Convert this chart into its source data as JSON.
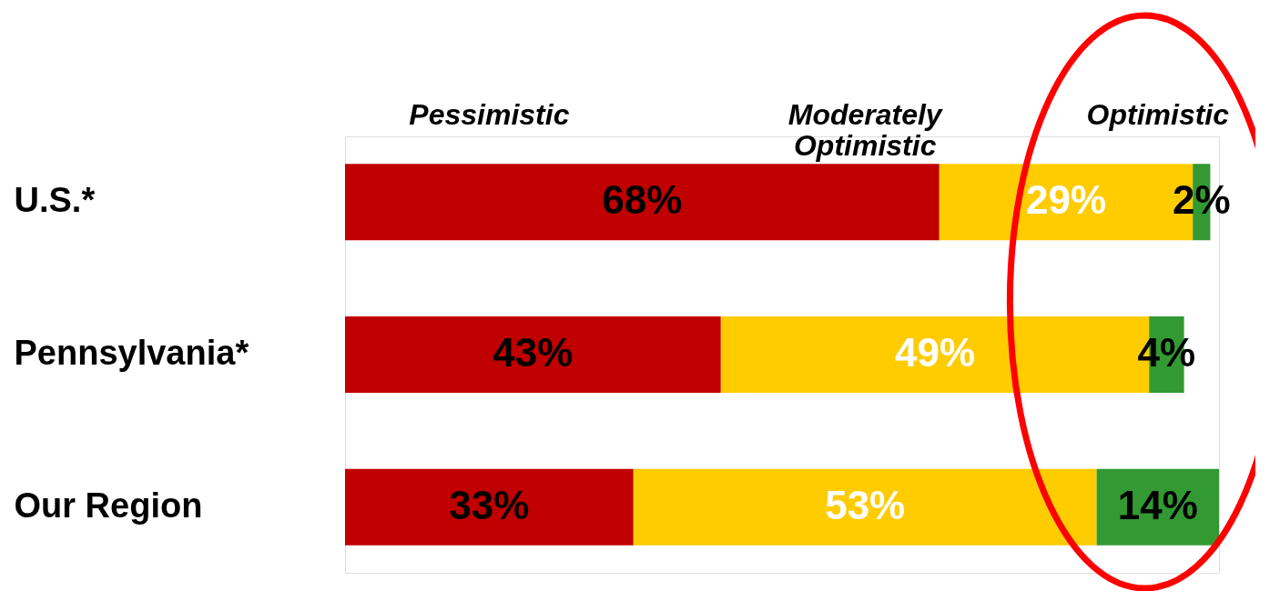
{
  "chart_data": {
    "type": "bar",
    "orientation": "horizontal",
    "stacked": true,
    "legend": false,
    "grid": false,
    "tick_labels": "y",
    "categories": [
      "U.S.*",
      "Pennsylvania*",
      "Our Region"
    ],
    "series": [
      {
        "name": "Pessimistic",
        "color": "#c00000",
        "values": [
          68,
          43,
          33
        ],
        "value_labels": [
          "68%",
          "43%",
          "33%"
        ]
      },
      {
        "name": "Moderately\nOptimistic",
        "color": "#ffcc00",
        "values": [
          29,
          49,
          53
        ],
        "value_labels": [
          "29%",
          "49%",
          "53%"
        ]
      },
      {
        "name": "Optimistic",
        "color": "#339933",
        "values": [
          2,
          4,
          14
        ],
        "value_labels": [
          "2%",
          "4%",
          "14%"
        ]
      }
    ]
  }
}
